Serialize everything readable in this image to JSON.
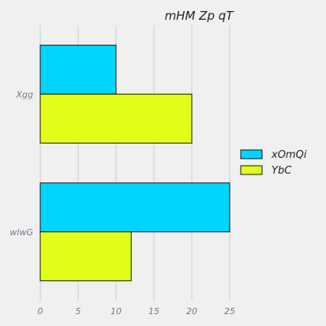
{
  "chart_data": {
    "type": "bar",
    "orientation": "horizontal",
    "title": "mHM Zp qT",
    "xlabel": "",
    "ylabel": "",
    "categories": [
      "Xgg",
      "wlwG"
    ],
    "series": [
      {
        "name": "xOmQi",
        "values": [
          10,
          25
        ],
        "color": "#00d5ff"
      },
      {
        "name": "YbC",
        "values": [
          20,
          12
        ],
        "color": "#e2ff1c"
      }
    ],
    "xlim": [
      0,
      25
    ],
    "xticks": [
      0,
      5,
      10,
      15,
      20,
      25
    ],
    "grid": "vertical",
    "legend_position": "right"
  }
}
